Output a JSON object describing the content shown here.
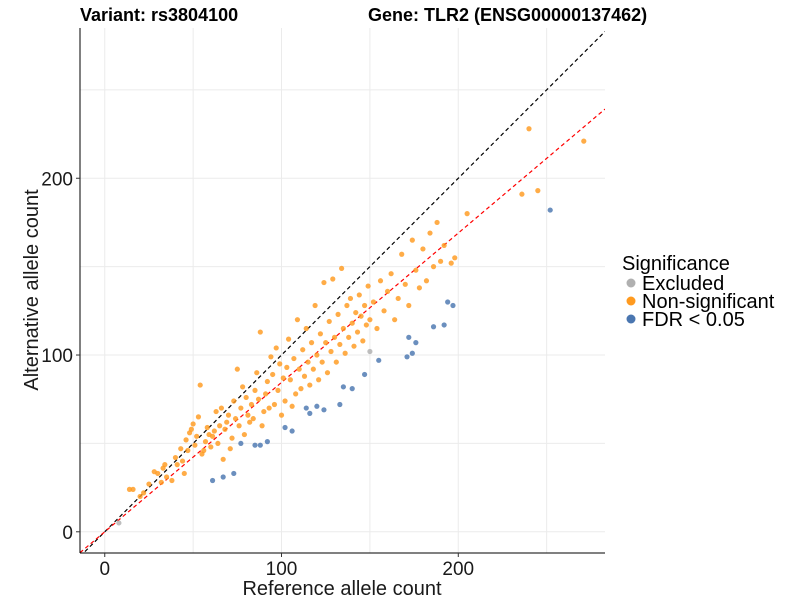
{
  "header": {
    "variant_title": "Variant: rs3804100",
    "gene_title": "Gene: TLR2 (ENSG00000137462)"
  },
  "chart_data": {
    "type": "scatter",
    "xlabel": "Reference allele count",
    "ylabel": "Alternative allele count",
    "xlim": [
      -14,
      283
    ],
    "ylim": [
      -12,
      285
    ],
    "x_ticks": [
      0,
      100,
      200
    ],
    "y_ticks": [
      0,
      100,
      200
    ],
    "grid": true,
    "reference_lines": [
      {
        "name": "identity",
        "slope": 1.0,
        "intercept": 0,
        "color": "#000000",
        "style": "dashed"
      },
      {
        "name": "fit",
        "slope": 0.845,
        "intercept": 0,
        "color": "#ff0000",
        "style": "dashed"
      }
    ],
    "legend": {
      "title": "Significance",
      "position": "right",
      "entries": [
        {
          "label": "Excluded",
          "color": "#b0b0b0"
        },
        {
          "label": "Non-significant",
          "color": "#ff9a1f"
        },
        {
          "label": "FDR < 0.05",
          "color": "#4a76b0"
        }
      ]
    },
    "series": [
      {
        "name": "Excluded",
        "color": "#b0b0b0",
        "points": [
          [
            8,
            5
          ],
          [
            150,
            102
          ]
        ]
      },
      {
        "name": "FDR < 0.05",
        "color": "#4a76b0",
        "points": [
          [
            61,
            29
          ],
          [
            67,
            31
          ],
          [
            73,
            33
          ],
          [
            77,
            50
          ],
          [
            85,
            49
          ],
          [
            88,
            49
          ],
          [
            92,
            51
          ],
          [
            102,
            59
          ],
          [
            106,
            57
          ],
          [
            114,
            70
          ],
          [
            116,
            67
          ],
          [
            120,
            71
          ],
          [
            124,
            69
          ],
          [
            133,
            72
          ],
          [
            135,
            82
          ],
          [
            140,
            81
          ],
          [
            147,
            89
          ],
          [
            155,
            97
          ],
          [
            171,
            99
          ],
          [
            172,
            110
          ],
          [
            174,
            101
          ],
          [
            176,
            107
          ],
          [
            186,
            116
          ],
          [
            192,
            117
          ],
          [
            194,
            130
          ],
          [
            197,
            128
          ],
          [
            252,
            182
          ]
        ]
      },
      {
        "name": "Non-significant",
        "color": "#ff9a1f",
        "points": [
          [
            14,
            24
          ],
          [
            16,
            24
          ],
          [
            20,
            20
          ],
          [
            22,
            22
          ],
          [
            25,
            27
          ],
          [
            28,
            34
          ],
          [
            30,
            33
          ],
          [
            32,
            28
          ],
          [
            33,
            36
          ],
          [
            34,
            38
          ],
          [
            35,
            31
          ],
          [
            38,
            29
          ],
          [
            40,
            42
          ],
          [
            41,
            38
          ],
          [
            43,
            47
          ],
          [
            44,
            40
          ],
          [
            45,
            33
          ],
          [
            46,
            52
          ],
          [
            47,
            46
          ],
          [
            48,
            56
          ],
          [
            49,
            58
          ],
          [
            50,
            61
          ],
          [
            51,
            49
          ],
          [
            52,
            54
          ],
          [
            53,
            65
          ],
          [
            54,
            83
          ],
          [
            55,
            44
          ],
          [
            56,
            46
          ],
          [
            57,
            51
          ],
          [
            58,
            59
          ],
          [
            59,
            55
          ],
          [
            60,
            48
          ],
          [
            61,
            54
          ],
          [
            62,
            57
          ],
          [
            63,
            68
          ],
          [
            64,
            50
          ],
          [
            65,
            60
          ],
          [
            66,
            70
          ],
          [
            67,
            41
          ],
          [
            68,
            58
          ],
          [
            69,
            62
          ],
          [
            70,
            66
          ],
          [
            71,
            47
          ],
          [
            72,
            53
          ],
          [
            73,
            74
          ],
          [
            74,
            64
          ],
          [
            75,
            92
          ],
          [
            76,
            60
          ],
          [
            77,
            70
          ],
          [
            78,
            82
          ],
          [
            79,
            55
          ],
          [
            80,
            76
          ],
          [
            81,
            66
          ],
          [
            82,
            62
          ],
          [
            83,
            72
          ],
          [
            84,
            64
          ],
          [
            85,
            80
          ],
          [
            86,
            90
          ],
          [
            87,
            75
          ],
          [
            88,
            113
          ],
          [
            89,
            60
          ],
          [
            90,
            68
          ],
          [
            91,
            78
          ],
          [
            92,
            85
          ],
          [
            93,
            70
          ],
          [
            94,
            99
          ],
          [
            95,
            89
          ],
          [
            96,
            72
          ],
          [
            97,
            104
          ],
          [
            98,
            80
          ],
          [
            99,
            95
          ],
          [
            100,
            66
          ],
          [
            101,
            87
          ],
          [
            102,
            74
          ],
          [
            103,
            93
          ],
          [
            104,
            109
          ],
          [
            105,
            86
          ],
          [
            106,
            71
          ],
          [
            107,
            98
          ],
          [
            108,
            78
          ],
          [
            109,
            120
          ],
          [
            110,
            92
          ],
          [
            111,
            81
          ],
          [
            112,
            103
          ],
          [
            113,
            88
          ],
          [
            114,
            115
          ],
          [
            115,
            96
          ],
          [
            116,
            83
          ],
          [
            117,
            107
          ],
          [
            118,
            92
          ],
          [
            119,
            128
          ],
          [
            120,
            100
          ],
          [
            121,
            86
          ],
          [
            122,
            112
          ],
          [
            123,
            96
          ],
          [
            124,
            141
          ],
          [
            125,
            107
          ],
          [
            126,
            90
          ],
          [
            127,
            119
          ],
          [
            128,
            102
          ],
          [
            129,
            143
          ],
          [
            130,
            110
          ],
          [
            131,
            96
          ],
          [
            132,
            123
          ],
          [
            133,
            106
          ],
          [
            134,
            149
          ],
          [
            135,
            115
          ],
          [
            136,
            101
          ],
          [
            137,
            128
          ],
          [
            138,
            110
          ],
          [
            139,
            132
          ],
          [
            140,
            118
          ],
          [
            141,
            105
          ],
          [
            142,
            124
          ],
          [
            143,
            113
          ],
          [
            144,
            134
          ],
          [
            145,
            122
          ],
          [
            146,
            108
          ],
          [
            147,
            128
          ],
          [
            148,
            117
          ],
          [
            149,
            139
          ],
          [
            150,
            120
          ],
          [
            152,
            130
          ],
          [
            154,
            115
          ],
          [
            156,
            142
          ],
          [
            158,
            125
          ],
          [
            160,
            136
          ],
          [
            162,
            146
          ],
          [
            164,
            120
          ],
          [
            166,
            132
          ],
          [
            168,
            157
          ],
          [
            170,
            140
          ],
          [
            172,
            128
          ],
          [
            174,
            165
          ],
          [
            176,
            148
          ],
          [
            178,
            138
          ],
          [
            180,
            160
          ],
          [
            182,
            142
          ],
          [
            184,
            169
          ],
          [
            186,
            150
          ],
          [
            188,
            175
          ],
          [
            190,
            153
          ],
          [
            192,
            162
          ],
          [
            196,
            152
          ],
          [
            198,
            155
          ],
          [
            205,
            180
          ],
          [
            236,
            191
          ],
          [
            240,
            228
          ],
          [
            245,
            193
          ],
          [
            271,
            221
          ]
        ]
      }
    ]
  }
}
